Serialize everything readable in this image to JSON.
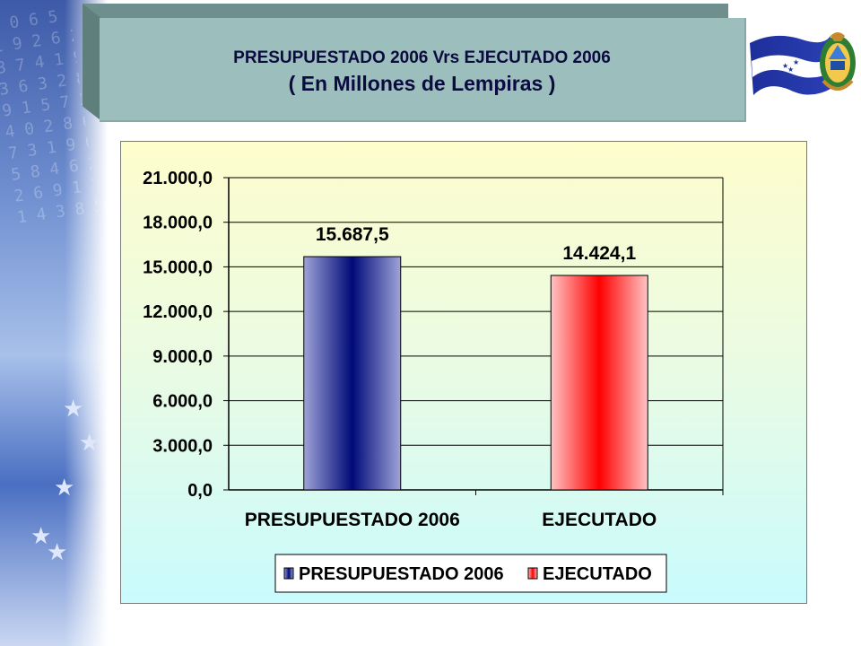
{
  "title": {
    "line1": "PRESUPUESTADO 2006 Vrs EJECUTADO 2006",
    "line2": "( En Millones de Lempiras )"
  },
  "colors": {
    "presupuestado": "#1a237e",
    "ejecutado": "#ff0000",
    "banner": "#9cbfbd",
    "title_text": "#0b0b40"
  },
  "chart_data": {
    "type": "bar",
    "categories": [
      "PRESUPUESTADO 2006",
      "EJECUTADO"
    ],
    "values": [
      15687.5,
      14424.1
    ],
    "value_labels": [
      "15.687,5",
      "14.424,1"
    ],
    "yticks": [
      "0,0",
      "3.000,0",
      "6.000,0",
      "9.000,0",
      "12.000,0",
      "15.000,0",
      "18.000,0",
      "21.000,0"
    ],
    "ylim": [
      0,
      21000
    ],
    "grid": true,
    "legend": {
      "position": "bottom",
      "entries": [
        "PRESUPUESTADO 2006",
        "EJECUTADO"
      ]
    }
  }
}
